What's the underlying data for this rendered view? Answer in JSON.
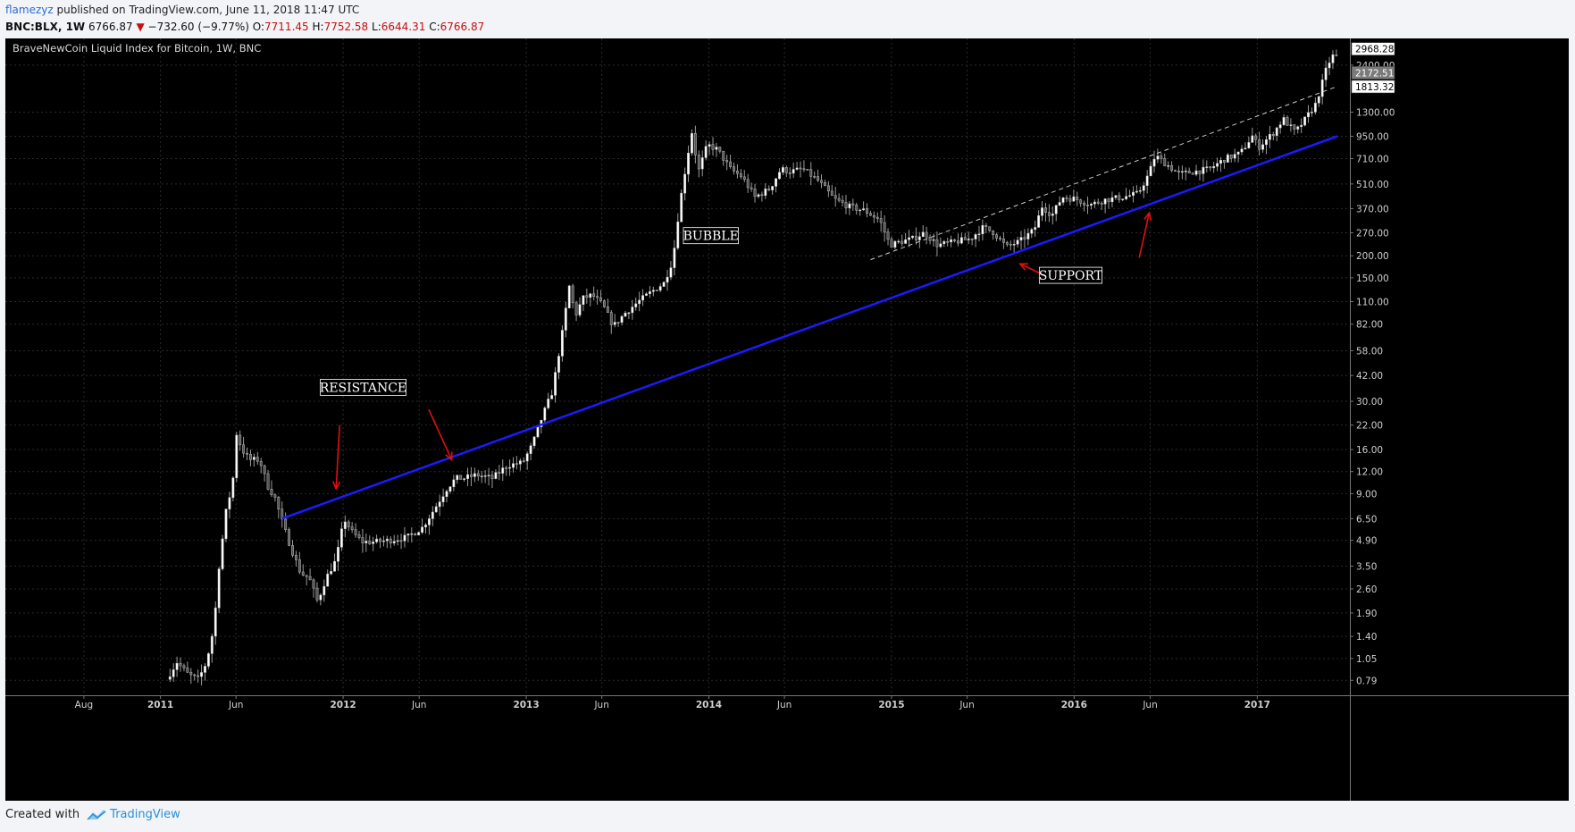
{
  "header": {
    "user": "flamezyz",
    "published": " published on TradingView.com, June 11, 2018 11:47 UTC"
  },
  "quote": {
    "symbol": "BNC:BLX, 1W",
    "last": "6766.87",
    "down_arrow": "▼",
    "change": "−732.60 (−9.77%)",
    "open_label": "O:",
    "open": "7711.45",
    "high_label": "H:",
    "high": "7752.58",
    "low_label": "L:",
    "low": "6644.31",
    "close_label": "C:",
    "close": "6766.87"
  },
  "footer": {
    "created_with": "Created with",
    "brand": "TradingView"
  },
  "chart_data": {
    "type": "candlestick",
    "title": "BraveNewCoin Liquid Index for Bitcoin, 1W, BNC",
    "y_scale": "log",
    "ylim": [
      0.65,
      3400
    ],
    "y_ticks": [
      "0.79",
      "1.05",
      "1.40",
      "1.90",
      "2.60",
      "3.50",
      "4.90",
      "6.50",
      "9.00",
      "12.00",
      "16.00",
      "22.00",
      "30.00",
      "42.00",
      "58.00",
      "82.00",
      "110.00",
      "150.00",
      "200.00",
      "270.00",
      "370.00",
      "510.00",
      "710.00",
      "950.00",
      "1300.00",
      "2400.00"
    ],
    "price_labels": [
      {
        "value": 2968.28,
        "text": "2968.28",
        "style": "white"
      },
      {
        "value": 2172.51,
        "text": "2172.51",
        "style": "gray"
      },
      {
        "value": 1813.32,
        "text": "1813.32",
        "style": "white"
      }
    ],
    "x_ticks": [
      {
        "date": "2010-08-01",
        "label": "Aug",
        "bold": false
      },
      {
        "date": "2011-01-01",
        "label": "2011",
        "bold": true
      },
      {
        "date": "2011-06-01",
        "label": "Jun",
        "bold": false
      },
      {
        "date": "2012-01-01",
        "label": "2012",
        "bold": true
      },
      {
        "date": "2012-06-01",
        "label": "Jun",
        "bold": false
      },
      {
        "date": "2013-01-01",
        "label": "2013",
        "bold": true
      },
      {
        "date": "2013-06-01",
        "label": "Jun",
        "bold": false
      },
      {
        "date": "2014-01-01",
        "label": "2014",
        "bold": true
      },
      {
        "date": "2014-06-01",
        "label": "Jun",
        "bold": false
      },
      {
        "date": "2015-01-01",
        "label": "2015",
        "bold": true
      },
      {
        "date": "2015-06-01",
        "label": "Jun",
        "bold": false
      },
      {
        "date": "2016-01-01",
        "label": "2016",
        "bold": true
      },
      {
        "date": "2016-06-01",
        "label": "Jun",
        "bold": false
      },
      {
        "date": "2017-01-01",
        "label": "2017",
        "bold": true
      }
    ],
    "price_path": [
      [
        "2011-01-20",
        0.8
      ],
      [
        "2011-02-10",
        1.0
      ],
      [
        "2011-03-05",
        0.85
      ],
      [
        "2011-03-25",
        0.8
      ],
      [
        "2011-04-10",
        1.0
      ],
      [
        "2011-04-25",
        1.6
      ],
      [
        "2011-05-05",
        3.5
      ],
      [
        "2011-05-20",
        7.5
      ],
      [
        "2011-06-01",
        10
      ],
      [
        "2011-06-08",
        20
      ],
      [
        "2011-06-20",
        16
      ],
      [
        "2011-07-05",
        14
      ],
      [
        "2011-07-25",
        14
      ],
      [
        "2011-08-10",
        10
      ],
      [
        "2011-08-25",
        8.5
      ],
      [
        "2011-09-10",
        6
      ],
      [
        "2011-09-25",
        4.5
      ],
      [
        "2011-10-15",
        3.2
      ],
      [
        "2011-11-01",
        3.0
      ],
      [
        "2011-11-18",
        2.2
      ],
      [
        "2011-12-05",
        3.0
      ],
      [
        "2011-12-25",
        3.8
      ],
      [
        "2012-01-10",
        6.5
      ],
      [
        "2012-01-25",
        5.5
      ],
      [
        "2012-02-15",
        4.8
      ],
      [
        "2012-03-10",
        4.8
      ],
      [
        "2012-04-10",
        4.9
      ],
      [
        "2012-05-15",
        5.1
      ],
      [
        "2012-06-15",
        5.8
      ],
      [
        "2012-07-10",
        7.5
      ],
      [
        "2012-08-01",
        9.5
      ],
      [
        "2012-08-20",
        11
      ],
      [
        "2012-09-05",
        11
      ],
      [
        "2012-10-01",
        11.5
      ],
      [
        "2012-11-01",
        11
      ],
      [
        "2012-12-01",
        13
      ],
      [
        "2013-01-01",
        13.5
      ],
      [
        "2013-01-20",
        17
      ],
      [
        "2013-02-10",
        25
      ],
      [
        "2013-03-01",
        34
      ],
      [
        "2013-03-20",
        70
      ],
      [
        "2013-04-05",
        140
      ],
      [
        "2013-04-15",
        90
      ],
      [
        "2013-05-01",
        115
      ],
      [
        "2013-05-20",
        120
      ],
      [
        "2013-06-10",
        105
      ],
      [
        "2013-07-01",
        80
      ],
      [
        "2013-07-25",
        95
      ],
      [
        "2013-08-20",
        110
      ],
      [
        "2013-09-15",
        125
      ],
      [
        "2013-10-10",
        140
      ],
      [
        "2013-10-28",
        190
      ],
      [
        "2013-11-10",
        380
      ],
      [
        "2013-11-25",
        700
      ],
      [
        "2013-12-05",
        1000
      ],
      [
        "2013-12-18",
        600
      ],
      [
        "2014-01-05",
        850
      ],
      [
        "2014-01-25",
        800
      ],
      [
        "2014-02-20",
        620
      ],
      [
        "2014-03-15",
        560
      ],
      [
        "2014-04-10",
        430
      ],
      [
        "2014-05-10",
        480
      ],
      [
        "2014-06-01",
        620
      ],
      [
        "2014-06-20",
        600
      ],
      [
        "2014-07-15",
        620
      ],
      [
        "2014-08-15",
        530
      ],
      [
        "2014-09-15",
        420
      ],
      [
        "2014-10-15",
        380
      ],
      [
        "2014-11-15",
        360
      ],
      [
        "2014-12-15",
        320
      ],
      [
        "2015-01-05",
        230
      ],
      [
        "2015-01-25",
        240
      ],
      [
        "2015-02-20",
        250
      ],
      [
        "2015-03-15",
        270
      ],
      [
        "2015-04-10",
        230
      ],
      [
        "2015-05-15",
        240
      ],
      [
        "2015-06-15",
        250
      ],
      [
        "2015-07-10",
        290
      ],
      [
        "2015-08-01",
        270
      ],
      [
        "2015-08-25",
        225
      ],
      [
        "2015-09-20",
        240
      ],
      [
        "2015-10-20",
        280
      ],
      [
        "2015-11-05",
        380
      ],
      [
        "2015-11-25",
        340
      ],
      [
        "2015-12-15",
        430
      ],
      [
        "2016-01-10",
        420
      ],
      [
        "2016-02-10",
        390
      ],
      [
        "2016-03-10",
        415
      ],
      [
        "2016-04-15",
        430
      ],
      [
        "2016-05-15",
        450
      ],
      [
        "2016-06-05",
        580
      ],
      [
        "2016-06-18",
        740
      ],
      [
        "2016-07-10",
        660
      ],
      [
        "2016-08-05",
        580
      ],
      [
        "2016-09-05",
        600
      ],
      [
        "2016-10-05",
        620
      ],
      [
        "2016-11-05",
        710
      ],
      [
        "2016-12-05",
        760
      ],
      [
        "2016-12-30",
        960
      ],
      [
        "2017-01-10",
        820
      ],
      [
        "2017-02-10",
        1000
      ],
      [
        "2017-03-01",
        1190
      ],
      [
        "2017-03-25",
        1000
      ],
      [
        "2017-04-15",
        1200
      ],
      [
        "2017-05-05",
        1450
      ],
      [
        "2017-05-20",
        2000
      ],
      [
        "2017-05-28",
        2400
      ],
      [
        "2017-06-08",
        2700
      ]
    ],
    "trendlines": [
      {
        "style": "solid",
        "color": "#1b1bff",
        "from": [
          "2011-09-01",
          6.5
        ],
        "to": [
          "2017-06-10",
          950
        ]
      },
      {
        "style": "dashed",
        "color": "#cccccc",
        "from": [
          "2014-11-20",
          190
        ],
        "to": [
          "2017-06-10",
          1820
        ]
      }
    ],
    "annotations": [
      {
        "text": "BUBBLE",
        "date": "2014-01-05",
        "value": 260
      },
      {
        "text": "RESISTANCE",
        "date": "2012-02-10",
        "value": 36
      },
      {
        "text": "SUPPORT",
        "date": "2015-12-25",
        "value": 155
      }
    ],
    "arrows": [
      {
        "from": [
          "2011-12-25",
          22
        ],
        "to": [
          "2011-12-18",
          9.6
        ]
      },
      {
        "from": [
          "2012-06-20",
          27
        ],
        "to": [
          "2012-08-05",
          14
        ]
      },
      {
        "from": [
          "2015-11-15",
          149
        ],
        "to": [
          "2015-09-15",
          180
        ]
      },
      {
        "from": [
          "2016-05-10",
          195
        ],
        "to": [
          "2016-05-30",
          350
        ]
      }
    ],
    "annotation_color": "#e01010"
  }
}
